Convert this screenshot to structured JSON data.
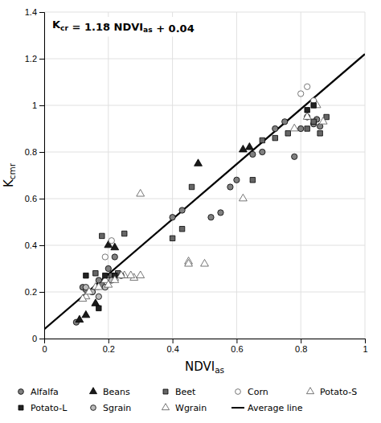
{
  "chart_data": {
    "type": "scatter",
    "xlabel": "NDVIas",
    "ylabel": "Kcmr",
    "annotations": [
      "Kcr = 1.18 NDVIas + 0.04"
    ],
    "xlim": [
      0,
      1.0
    ],
    "ylim": [
      0,
      1.4
    ],
    "xticks": [
      0,
      0.2,
      0.4,
      0.6,
      0.8,
      1
    ],
    "yticks": [
      0,
      0.2,
      0.4,
      0.6,
      0.8,
      1,
      1.2,
      1.4
    ],
    "grid": true,
    "legend": "bottom",
    "series": [
      {
        "name": "Alfalfa",
        "type": "scatter",
        "marker": "circle",
        "color": "#808080",
        "x": [
          0.1,
          0.12,
          0.13,
          0.15,
          0.17,
          0.18,
          0.2,
          0.22,
          0.4,
          0.43,
          0.52,
          0.55,
          0.58,
          0.6,
          0.65,
          0.68,
          0.72,
          0.75,
          0.78,
          0.8,
          0.82,
          0.84,
          0.85,
          0.86
        ],
        "values": [
          0.07,
          0.22,
          0.21,
          0.2,
          0.25,
          0.23,
          0.3,
          0.35,
          0.52,
          0.55,
          0.52,
          0.54,
          0.65,
          0.68,
          0.79,
          0.8,
          0.9,
          0.93,
          0.78,
          0.9,
          0.95,
          0.92,
          0.94,
          0.91
        ]
      },
      {
        "name": "Beans",
        "type": "scatter",
        "marker": "triangle",
        "color": "#1a1a1a",
        "x": [
          0.11,
          0.13,
          0.16,
          0.2,
          0.22,
          0.48,
          0.62,
          0.64
        ],
        "values": [
          0.08,
          0.1,
          0.15,
          0.4,
          0.39,
          0.75,
          0.81,
          0.82
        ]
      },
      {
        "name": "Beet",
        "type": "scatter",
        "marker": "square",
        "color": "#666666",
        "x": [
          0.16,
          0.18,
          0.21,
          0.23,
          0.25,
          0.4,
          0.43,
          0.46,
          0.65,
          0.68,
          0.72,
          0.76,
          0.82,
          0.84,
          0.86,
          0.88
        ],
        "values": [
          0.28,
          0.44,
          0.27,
          0.28,
          0.45,
          0.43,
          0.47,
          0.65,
          0.68,
          0.85,
          0.86,
          0.88,
          0.9,
          0.93,
          0.88,
          0.95
        ]
      },
      {
        "name": "Corn",
        "type": "scatter",
        "marker": "circle-open",
        "color": "#555555",
        "x": [
          0.19,
          0.21,
          0.8,
          0.82,
          0.84
        ],
        "values": [
          0.35,
          0.42,
          1.05,
          1.08,
          1.02
        ]
      },
      {
        "name": "Potato-S",
        "type": "scatter",
        "marker": "triangle-open",
        "color": "#555555",
        "x": [
          0.13,
          0.16,
          0.19,
          0.22,
          0.25,
          0.28,
          0.3,
          0.45,
          0.62,
          0.78,
          0.82,
          0.85,
          0.87
        ],
        "values": [
          0.18,
          0.22,
          0.25,
          0.26,
          0.27,
          0.26,
          0.62,
          0.33,
          0.6,
          0.9,
          0.95,
          1.0,
          0.93
        ]
      },
      {
        "name": "Potato-L",
        "type": "scatter",
        "marker": "square",
        "color": "#222222",
        "x": [
          0.13,
          0.17,
          0.19,
          0.22,
          0.82,
          0.84
        ],
        "values": [
          0.27,
          0.13,
          0.27,
          0.27,
          0.98,
          1.0
        ]
      },
      {
        "name": "Sgrain",
        "type": "scatter",
        "marker": "circle",
        "color": "#bbbbbb",
        "x": [
          0.13,
          0.15,
          0.17,
          0.19,
          0.21,
          0.24
        ],
        "values": [
          0.22,
          0.2,
          0.18,
          0.22,
          0.25,
          0.27
        ]
      },
      {
        "name": "Wgrain",
        "type": "scatter",
        "marker": "triangle-open",
        "color": "#555555",
        "x": [
          0.12,
          0.14,
          0.17,
          0.2,
          0.22,
          0.24,
          0.27,
          0.3,
          0.45,
          0.5
        ],
        "values": [
          0.17,
          0.2,
          0.22,
          0.23,
          0.25,
          0.27,
          0.27,
          0.27,
          0.32,
          0.32
        ]
      },
      {
        "name": "Average line",
        "type": "line",
        "color": "#000000",
        "x": [
          0,
          1.0
        ],
        "values": [
          0.04,
          1.22
        ]
      }
    ]
  }
}
